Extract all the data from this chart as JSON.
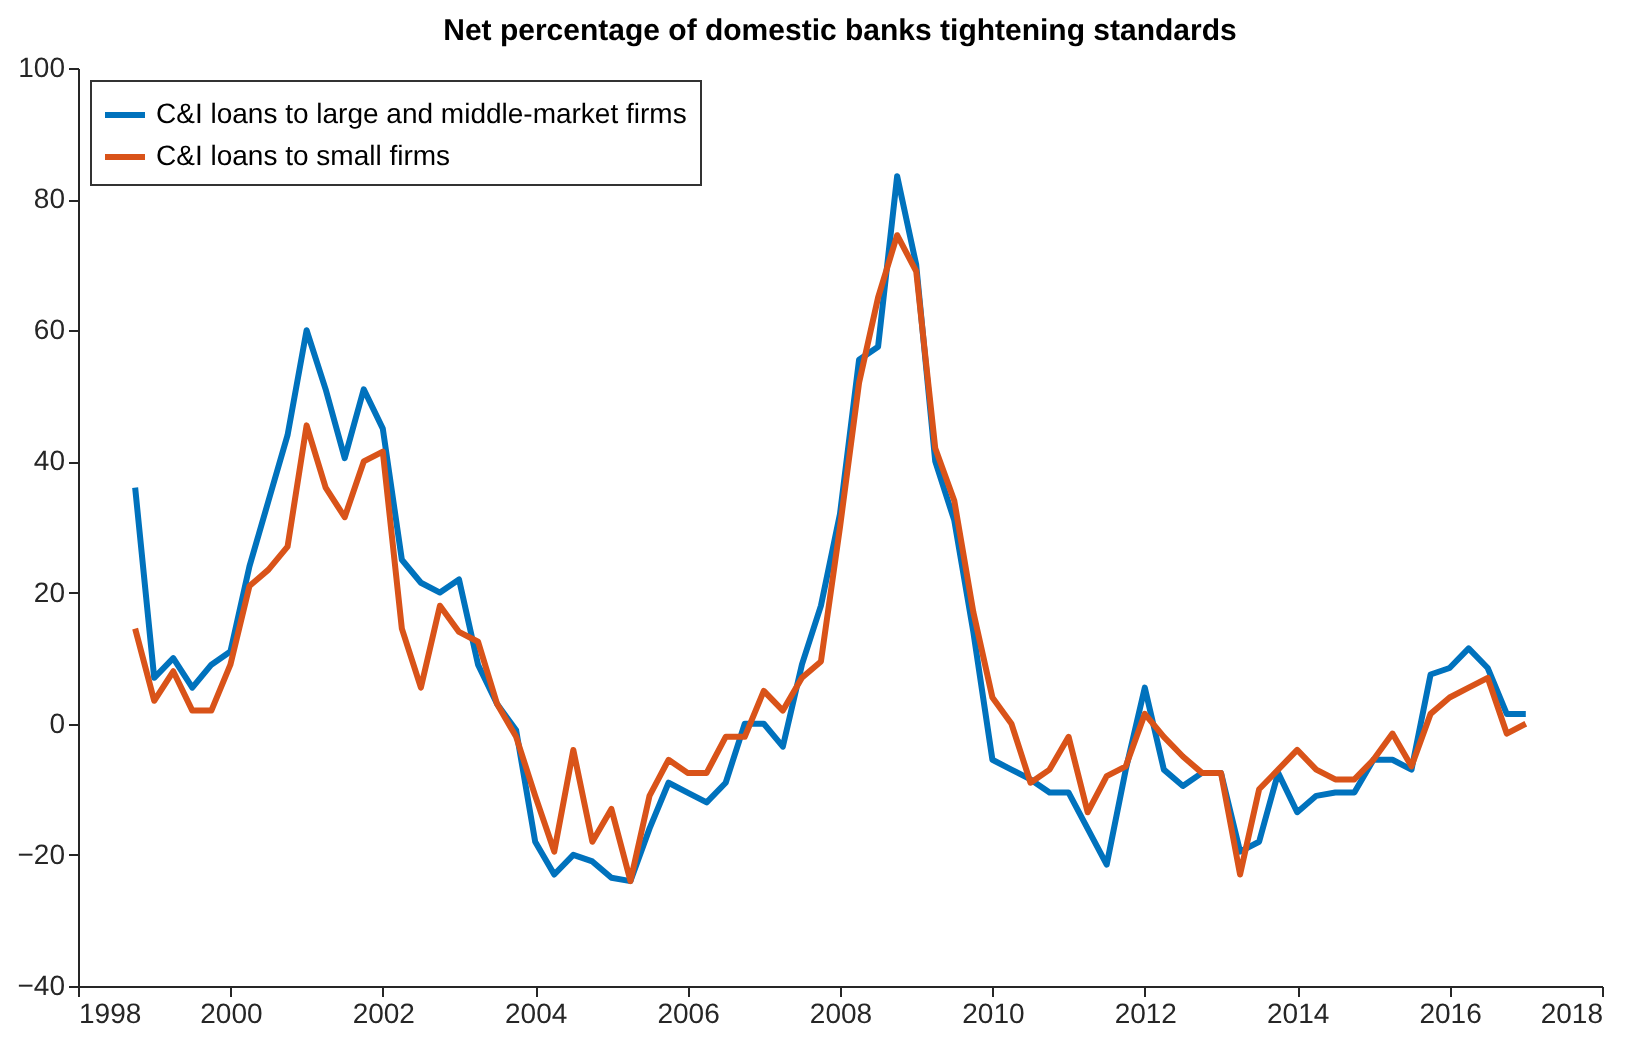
{
  "chart_data": {
    "type": "line",
    "title": "Net percentage of domestic banks tightening standards",
    "x": [
      1998.75,
      1999.0,
      1999.25,
      1999.5,
      1999.75,
      2000.0,
      2000.25,
      2000.5,
      2000.75,
      2001.0,
      2001.25,
      2001.5,
      2001.75,
      2002.0,
      2002.25,
      2002.5,
      2002.75,
      2003.0,
      2003.25,
      2003.5,
      2003.75,
      2004.0,
      2004.25,
      2004.5,
      2004.75,
      2005.0,
      2005.25,
      2005.5,
      2005.75,
      2006.0,
      2006.25,
      2006.5,
      2006.75,
      2007.0,
      2007.25,
      2007.5,
      2007.75,
      2008.0,
      2008.25,
      2008.5,
      2008.75,
      2009.0,
      2009.25,
      2009.5,
      2009.75,
      2010.0,
      2010.25,
      2010.5,
      2010.75,
      2011.0,
      2011.25,
      2011.5,
      2011.75,
      2012.0,
      2012.25,
      2012.5,
      2012.75,
      2013.0,
      2013.25,
      2013.5,
      2013.75,
      2014.0,
      2014.25,
      2014.5,
      2014.75,
      2015.0,
      2015.25,
      2015.5,
      2015.75,
      2016.0,
      2016.25,
      2016.5,
      2016.75,
      2017.0
    ],
    "series": [
      {
        "name": "C&I loans to large and middle-market firms",
        "color": "#0072bd",
        "values": [
          36,
          7,
          10,
          5.5,
          9,
          11,
          24,
          34,
          44,
          60,
          51,
          40.5,
          51,
          45,
          25,
          21.5,
          20,
          22,
          9,
          3,
          -1,
          -18,
          -23,
          -20,
          -21,
          -23.5,
          -24,
          -16,
          -9,
          -10.5,
          -12,
          -9,
          0,
          0,
          -3.5,
          9,
          18,
          32,
          55.5,
          57.5,
          83.5,
          70,
          40,
          31,
          14,
          -5.5,
          -7,
          -8.5,
          -10.5,
          -10.5,
          -16,
          -21.5,
          -7,
          5.5,
          -7,
          -9.5,
          -7.5,
          -7.5,
          -19.5,
          -18,
          -7.5,
          -13.5,
          -11,
          -10.5,
          -10.5,
          -5.5,
          -5.5,
          -7,
          7.5,
          8.5,
          11.5,
          8.5,
          1.5,
          1.5
        ]
      },
      {
        "name": "C&I loans to small firms",
        "color": "#d95319",
        "values": [
          14.5,
          3.5,
          8,
          2,
          2,
          9,
          21,
          23.5,
          27,
          45.5,
          36,
          31.5,
          40,
          41.5,
          14.5,
          5.5,
          18,
          14,
          12.5,
          3,
          -2,
          -11,
          -19.5,
          -4,
          -18,
          -13,
          -24,
          -11,
          -5.5,
          -7.5,
          -7.5,
          -2,
          -2,
          5,
          2,
          7,
          9.5,
          30,
          52,
          65,
          74.5,
          69,
          42,
          34,
          17,
          4,
          0,
          -9,
          -7,
          -2,
          -13.5,
          -8,
          -6.5,
          1.5,
          -2,
          -5,
          -7.5,
          -7.5,
          -23,
          -10,
          -7,
          -4,
          -7,
          -8.5,
          -8.5,
          -5.5,
          -1.5,
          -6.5,
          1.5,
          4,
          5.5,
          7,
          -1.5,
          0
        ]
      }
    ],
    "xlim": [
      1998,
      2018
    ],
    "xticks": [
      1998,
      2000,
      2002,
      2004,
      2006,
      2008,
      2010,
      2012,
      2014,
      2016,
      2018
    ],
    "ylim": [
      -40,
      100
    ],
    "yticks": [
      -40,
      -20,
      0,
      20,
      40,
      60,
      80,
      100
    ],
    "grid": false,
    "legend": "top left",
    "marker": "none",
    "line_style": "solid"
  }
}
